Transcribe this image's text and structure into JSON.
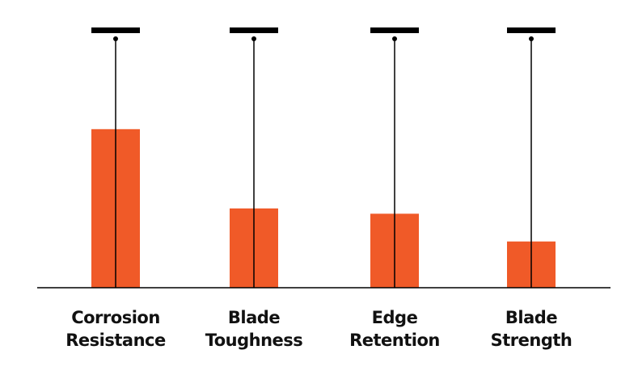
{
  "chart_data": {
    "type": "bar",
    "categories": [
      [
        "Corrosion",
        "Resistance"
      ],
      [
        "Blade",
        "Toughness"
      ],
      [
        "Edge",
        "Retention"
      ],
      [
        "Blade",
        "Strength"
      ]
    ],
    "values": [
      6.0,
      3.0,
      2.8,
      1.75
    ],
    "ylim": [
      0,
      10
    ],
    "grid": false,
    "legend": "none",
    "bar_color": "#f05a28",
    "line_color": "#000000"
  }
}
